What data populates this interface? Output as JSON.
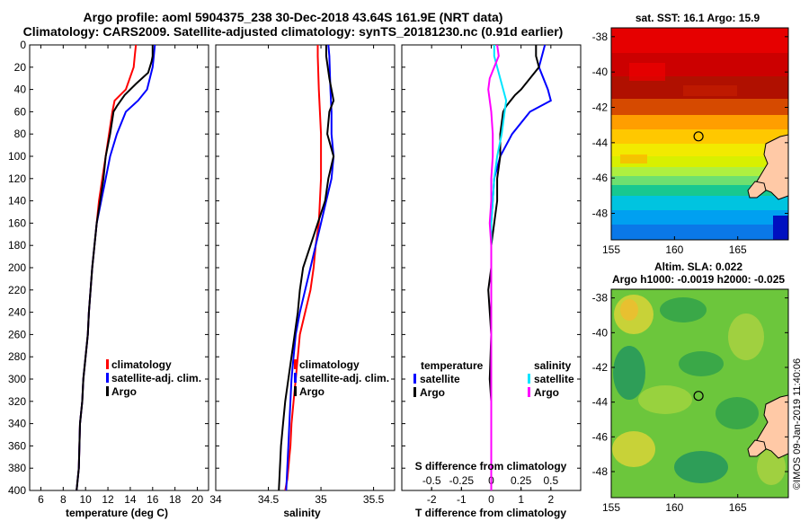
{
  "title_line1": "Argo profile: aoml 5904375_238 30-Dec-2018 43.64S 161.9E (NRT data)",
  "title_line2": "Climatology: CARS2009. Satellite-adjusted climatology: synTS_20181230.nc (0.91d earlier)",
  "sst_title": "sat. SST: 16.1  Argo: 15.9",
  "sla_title_line1": "Altim. SLA: 0.022",
  "sla_title_line2": "Argo h1000: -0.0019  h2000: -0.025",
  "stamp": "©IMOS 09-Jan-2019 11:40:06",
  "colors": {
    "climatology": "#ff0000",
    "satellite": "#0000ff",
    "argo": "#000000",
    "sat_salinity": "#00e5ff",
    "argo_salinity": "#ff00ff"
  },
  "chart_data": [
    {
      "type": "line",
      "panel": "temperature",
      "xlabel": "temperature (deg C)",
      "xlim": [
        5,
        21
      ],
      "xticks": [
        6,
        8,
        10,
        12,
        14,
        16,
        18,
        20
      ],
      "ylim": [
        0,
        400
      ],
      "yticks": [
        0,
        20,
        40,
        60,
        80,
        100,
        120,
        140,
        160,
        180,
        200,
        220,
        240,
        260,
        280,
        300,
        320,
        340,
        360,
        380,
        400
      ],
      "legend": [
        "climatology",
        "satellite-adj. clim.",
        "Argo"
      ],
      "series": [
        {
          "name": "climatology",
          "color": "#ff0000",
          "x": [
            14.5,
            14.4,
            14.3,
            13.6,
            12.6,
            12.4,
            12.1,
            11.8,
            11.5,
            11.2,
            11.0,
            10.8,
            10.6,
            10.3,
            10.2,
            10.0,
            9.8,
            9.7,
            9.5,
            9.4,
            9.2
          ],
          "y": [
            0,
            10,
            20,
            40,
            50,
            60,
            80,
            100,
            120,
            140,
            160,
            180,
            200,
            240,
            260,
            280,
            300,
            320,
            340,
            380,
            400
          ]
        },
        {
          "name": "satellite-adj. clim.",
          "color": "#0000ff",
          "x": [
            16.2,
            16.1,
            16.0,
            15.5,
            14.7,
            13.6,
            12.8,
            12.2,
            11.8,
            11.4,
            11.0,
            10.8,
            10.6,
            10.3,
            10.2,
            10.0,
            9.8,
            9.7,
            9.5,
            9.4,
            9.2
          ],
          "y": [
            0,
            10,
            20,
            40,
            50,
            60,
            80,
            100,
            120,
            140,
            160,
            180,
            200,
            240,
            260,
            280,
            300,
            320,
            340,
            380,
            400
          ]
        },
        {
          "name": "Argo",
          "color": "#000000",
          "x": [
            16.0,
            16.0,
            15.9,
            15.6,
            14.5,
            13.5,
            12.8,
            12.5,
            12.2,
            11.8,
            11.6,
            11.3,
            11.0,
            10.8,
            10.6,
            10.3,
            10.2,
            10.0,
            9.8,
            9.7,
            9.5,
            9.4,
            9.2
          ],
          "y": [
            0,
            10,
            15,
            25,
            35,
            45,
            55,
            60,
            80,
            100,
            120,
            140,
            160,
            180,
            200,
            240,
            260,
            280,
            300,
            320,
            340,
            380,
            400
          ]
        }
      ]
    },
    {
      "type": "line",
      "panel": "salinity",
      "xlabel": "salinity",
      "xlim": [
        34,
        35.7
      ],
      "xticks": [
        34,
        34.5,
        35,
        35.5
      ],
      "xticklabels": [
        "34",
        "34.5",
        "35",
        "35.5"
      ],
      "ylim": [
        0,
        400
      ],
      "legend": [
        "climatology",
        "satellite-adj. clim.",
        "Argo"
      ],
      "series": [
        {
          "name": "climatology",
          "color": "#ff0000",
          "x": [
            34.97,
            34.97,
            34.98,
            35.0,
            35.0,
            35.0,
            34.99,
            34.98,
            34.95,
            34.93,
            34.9,
            34.85,
            34.8,
            34.78,
            34.76,
            34.74,
            34.72,
            34.71,
            34.7,
            34.69,
            34.68,
            34.67,
            34.66
          ],
          "y": [
            0,
            10,
            40,
            80,
            100,
            120,
            140,
            160,
            180,
            200,
            220,
            240,
            260,
            280,
            300,
            320,
            340,
            360,
            370,
            380,
            390,
            395,
            400
          ]
        },
        {
          "name": "satellite-adj. clim.",
          "color": "#0000ff",
          "x": [
            35.07,
            35.08,
            35.09,
            35.1,
            35.1,
            35.12,
            35.1,
            35.05,
            35.0,
            34.95,
            34.9,
            34.85,
            34.8,
            34.76,
            34.74,
            34.72,
            34.71,
            34.7,
            34.69,
            34.68,
            34.67
          ],
          "y": [
            0,
            10,
            40,
            60,
            80,
            100,
            120,
            140,
            160,
            180,
            200,
            220,
            240,
            260,
            280,
            300,
            320,
            340,
            360,
            380,
            400
          ]
        },
        {
          "name": "Argo",
          "color": "#000000",
          "x": [
            35.05,
            35.05,
            35.08,
            35.12,
            35.08,
            35.06,
            35.12,
            35.07,
            35.04,
            34.97,
            34.9,
            34.83,
            34.8,
            34.78,
            34.75,
            34.72,
            34.69,
            34.66,
            34.64,
            34.62,
            34.61,
            34.6
          ],
          "y": [
            0,
            10,
            30,
            50,
            60,
            80,
            100,
            120,
            140,
            160,
            180,
            200,
            220,
            240,
            260,
            280,
            300,
            320,
            340,
            360,
            380,
            400
          ]
        }
      ]
    },
    {
      "type": "line",
      "panel": "difference",
      "xlabel": "T difference from climatology",
      "xlabel_top": "S difference from climatology",
      "xlim": [
        -3,
        3
      ],
      "xticks": [
        -2,
        -1,
        0,
        1,
        2
      ],
      "xticklabels": [
        "-2",
        "-1",
        "0",
        "1",
        "2"
      ],
      "sticks": [
        -0.5,
        -0.25,
        0,
        0.25,
        0.5
      ],
      "sticklabels": [
        "-0.5",
        "-0.25",
        "0",
        "0.25",
        "0.5"
      ],
      "ylim": [
        0,
        400
      ],
      "legend_left_title": "temperature",
      "legend_right_title": "salinity",
      "legend_left": [
        "satellite",
        "Argo"
      ],
      "legend_right": [
        "satellite",
        "Argo"
      ],
      "series": [
        {
          "name": "T satellite",
          "color": "#0000ff",
          "x": [
            1.8,
            1.7,
            1.6,
            1.9,
            2.0,
            1.3,
            0.7,
            0.3,
            0.1,
            0.05,
            0.0,
            0.0,
            0.0,
            0.0,
            0.0,
            0.0,
            0.0,
            0.0,
            0.0,
            0.0,
            0.0
          ],
          "y": [
            0,
            10,
            20,
            40,
            50,
            60,
            80,
            100,
            120,
            140,
            160,
            180,
            200,
            240,
            260,
            280,
            300,
            320,
            340,
            380,
            400
          ]
        },
        {
          "name": "T Argo",
          "color": "#000000",
          "x": [
            1.5,
            1.5,
            1.6,
            1.3,
            1.0,
            0.8,
            0.5,
            0.4,
            0.3,
            0.3,
            0.2,
            0.2,
            0.1,
            0.0,
            0.0,
            -0.1,
            0.0,
            -0.05,
            0.0,
            0.0,
            0.0
          ],
          "y": [
            0,
            10,
            20,
            30,
            40,
            45,
            55,
            60,
            80,
            100,
            120,
            140,
            160,
            180,
            200,
            220,
            260,
            300,
            320,
            360,
            400
          ]
        },
        {
          "name": "S satellite",
          "color": "#00e5ff",
          "x": [
            0.1,
            0.1,
            0.2,
            0.4,
            0.5,
            0.45,
            0.35,
            0.2,
            0.1,
            0.05,
            0.0,
            0.0,
            0.0,
            0.0,
            0.0,
            0.0,
            0.0,
            0.0,
            0.0,
            0.0,
            0.0
          ],
          "y": [
            0,
            10,
            20,
            40,
            50,
            60,
            80,
            100,
            120,
            140,
            160,
            180,
            200,
            240,
            260,
            280,
            300,
            320,
            340,
            380,
            400
          ]
        },
        {
          "name": "S Argo",
          "color": "#ff00ff",
          "x": [
            0.2,
            0.25,
            0.1,
            -0.05,
            -0.1,
            0.0,
            0.05,
            0.05,
            0.0,
            0.0,
            -0.05,
            0.0,
            0.0,
            0.0,
            0.0,
            0.0,
            0.0,
            0.0,
            0.0,
            0.0,
            0.0
          ],
          "y": [
            0,
            10,
            20,
            30,
            40,
            60,
            80,
            100,
            120,
            140,
            160,
            180,
            200,
            240,
            260,
            280,
            300,
            320,
            340,
            380,
            400
          ]
        }
      ]
    },
    {
      "type": "heatmap",
      "panel": "sat. SST map",
      "xlim": [
        155,
        169
      ],
      "xticks": [
        155,
        160,
        165
      ],
      "ylim": [
        -49.5,
        -37.5
      ],
      "yticks": [
        -38,
        -40,
        -42,
        -44,
        -46,
        -48
      ],
      "argo_position": [
        161.9,
        -43.64
      ]
    },
    {
      "type": "heatmap",
      "panel": "Altim. SLA map",
      "xlim": [
        155,
        169
      ],
      "xticks": [
        155,
        160,
        165
      ],
      "ylim": [
        -49.5,
        -37.5
      ],
      "yticks": [
        -38,
        -40,
        -42,
        -44,
        -46,
        -48
      ],
      "argo_position": [
        161.9,
        -43.64
      ]
    }
  ]
}
